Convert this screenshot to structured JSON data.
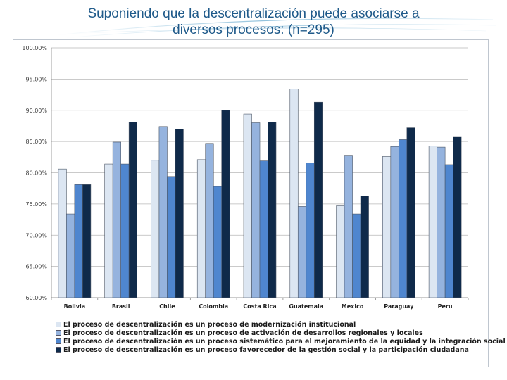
{
  "slide": {
    "title_line1": "Suponiendo que la descentralización puede asociarse a",
    "title_line2": "diversos procesos: (n=295)"
  },
  "chart_data": {
    "type": "bar",
    "categories": [
      "Bolivia",
      "Brasil",
      "Chile",
      "Colombia",
      "Costa Rica",
      "Guatemala",
      "Mexico",
      "Paraguay",
      "Peru"
    ],
    "series": [
      {
        "name": "El proceso de descentralización es un proceso de modernización institucional",
        "color": "#dce6f2",
        "values": [
          80.6,
          81.4,
          82.0,
          82.1,
          89.4,
          93.4,
          74.7,
          82.6,
          84.3
        ]
      },
      {
        "name": "El proceso de descentralización es un proceso de activación de desarrollos regionales y locales",
        "color": "#95b3de",
        "values": [
          73.4,
          84.9,
          87.4,
          84.7,
          88.0,
          74.6,
          82.8,
          84.2,
          84.1
        ]
      },
      {
        "name": "El proceso de descentralización es un proceso sistemático para el mejoramiento de la equidad y la integración social",
        "color": "#4f86cf",
        "values": [
          78.1,
          81.4,
          79.4,
          77.8,
          81.9,
          81.6,
          73.4,
          85.3,
          81.3
        ]
      },
      {
        "name": "El proceso de descentralización es un proceso favorecedor de la gestión social y la participación ciudadana",
        "color": "#0f2a4a",
        "values": [
          78.1,
          88.1,
          87.0,
          90.0,
          88.1,
          91.3,
          76.3,
          87.2,
          85.8
        ]
      }
    ],
    "yticks": [
      "100.00%",
      "95.00%",
      "90.00%",
      "85.00%",
      "80.00%",
      "75.00%",
      "70.00%",
      "65.00%",
      "60.00%"
    ],
    "ylim": [
      60,
      100
    ],
    "grid": true,
    "legend_position": "bottom",
    "title": "",
    "xlabel": "",
    "ylabel": ""
  }
}
